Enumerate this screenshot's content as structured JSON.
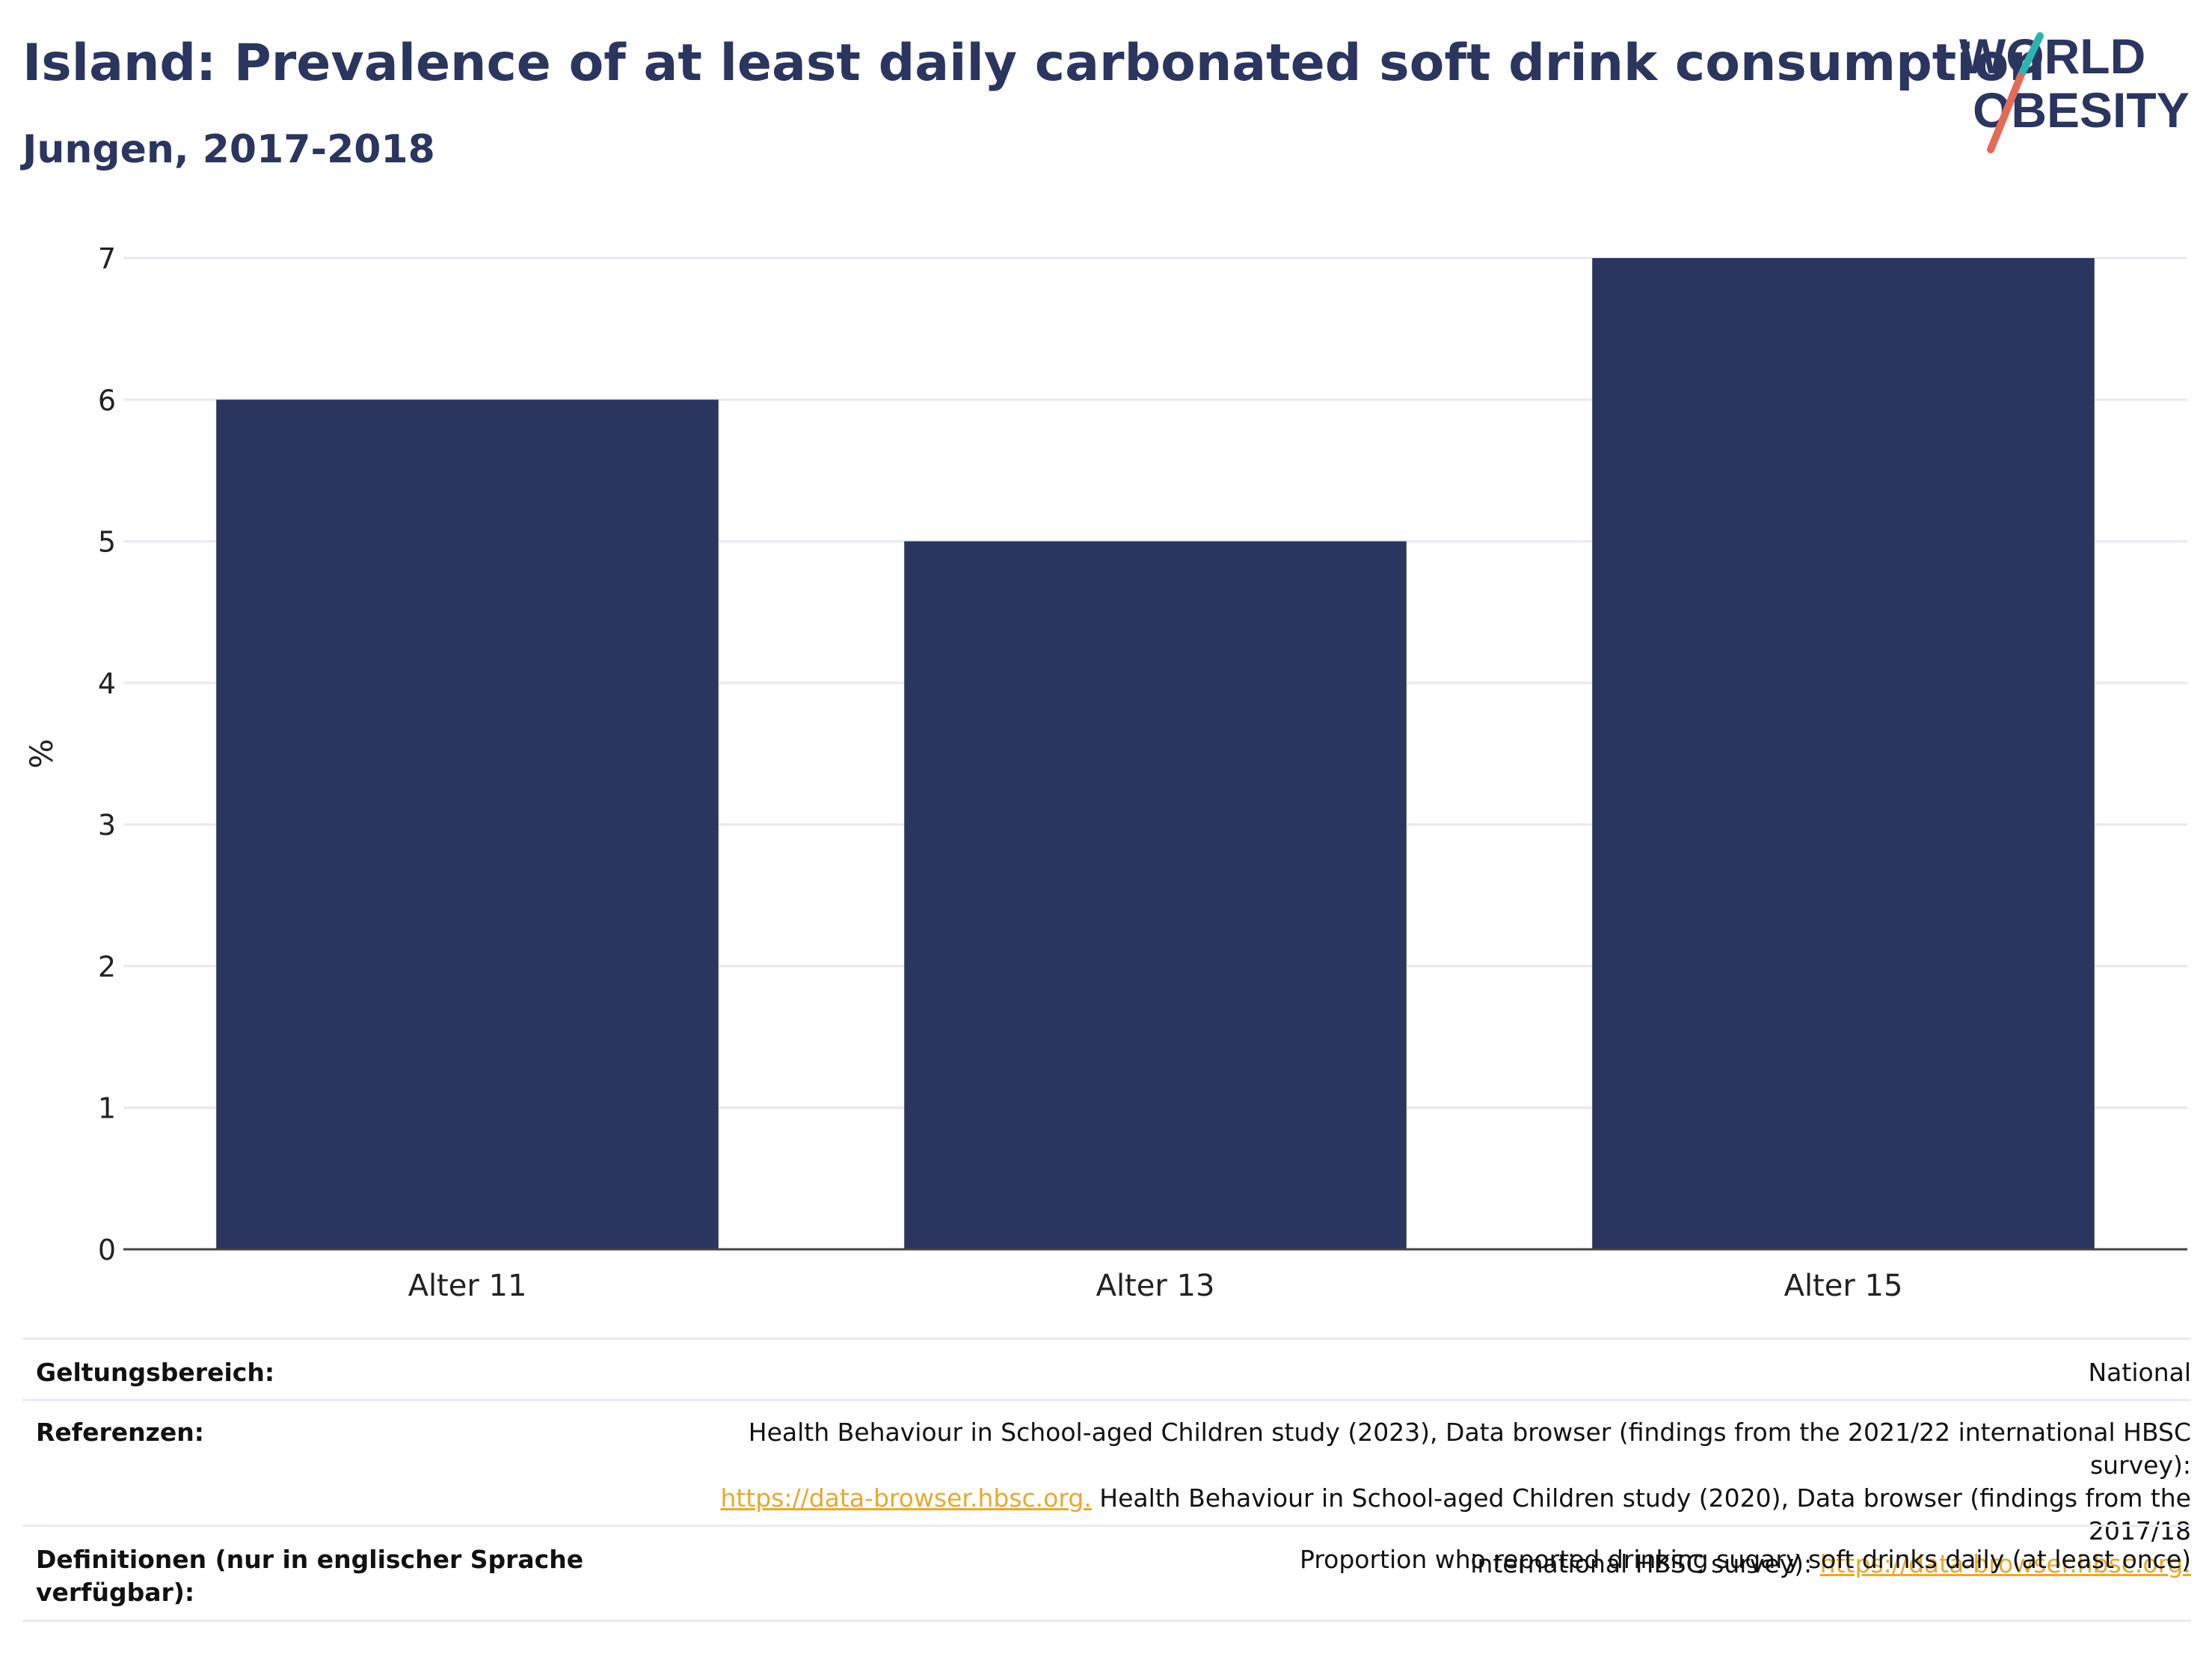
{
  "header": {
    "title": "Island: Prevalence of at least daily carbonated soft drink consumption",
    "subtitle": "Jungen, 2017-2018"
  },
  "logo": {
    "line1": "WORLD",
    "line2": "OBESITY",
    "colors": {
      "text": "#2a3560",
      "slash_teal": "#2bb3b1",
      "slash_coral": "#e46a56"
    }
  },
  "chart_data": {
    "type": "bar",
    "categories": [
      "Alter 11",
      "Alter 13",
      "Alter 15"
    ],
    "values": [
      6,
      5,
      7
    ],
    "title": "Island: Prevalence of at least daily carbonated soft drink consumption",
    "subtitle": "Jungen, 2017-2018",
    "xlabel": "",
    "ylabel": "%",
    "ylim": [
      0,
      7
    ],
    "yticks": [
      0,
      1,
      2,
      3,
      4,
      5,
      6,
      7
    ],
    "grid": true,
    "bar_color": "#2a3560"
  },
  "meta": {
    "scope_label": "Geltungsbereich:",
    "scope_value": "National",
    "refs_label": "Referenzen:",
    "refs_line1": "Health Behaviour in School-aged Children study (2023), Data browser (findings from the 2021/22 international HBSC survey):",
    "refs_link1": "https://data-browser.hbsc.org.",
    "refs_line2": " Health Behaviour in School-aged Children study (2020), Data browser (findings from the 2017/18",
    "refs_line3": "international HBSC survey): ",
    "refs_link2": "https://data-browser.hbsc.org.",
    "defs_label": "Definitionen (nur in englischer Sprache verfügbar):",
    "defs_value": "Proportion who reported drinking sugary soft drinks daily (at least once)"
  }
}
